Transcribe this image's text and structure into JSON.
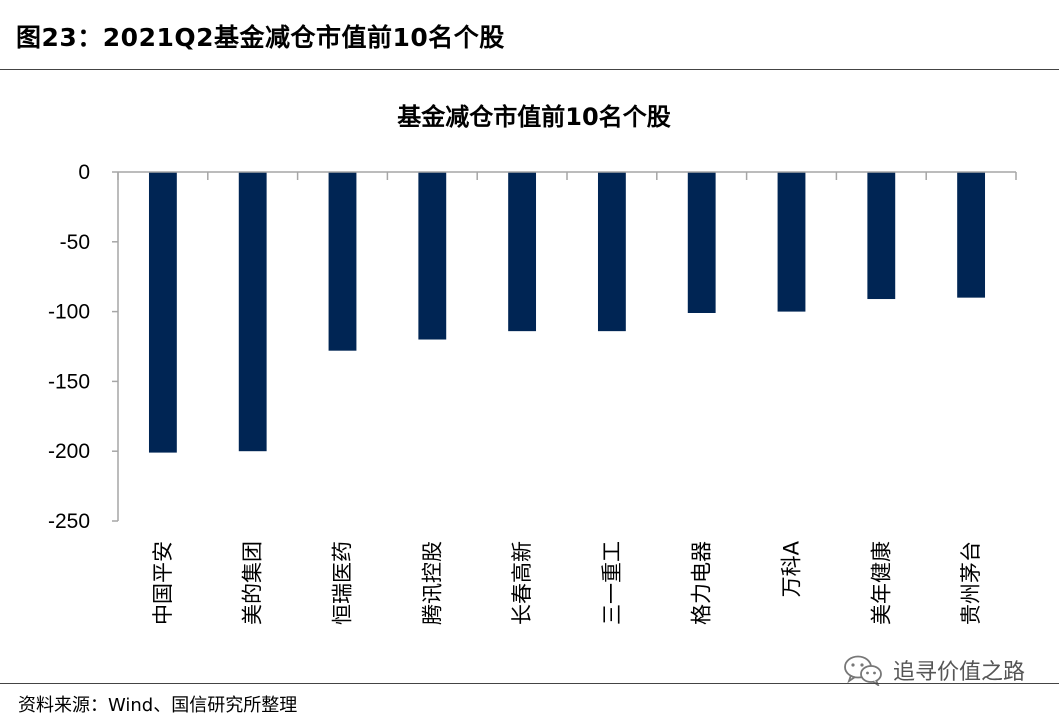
{
  "figure": {
    "title": "图23：2021Q2基金减仓市值前10名个股",
    "source": "资料来源：Wind、国信研究所整理",
    "watermark": "追寻价值之路",
    "watermark_icon": "wechat-icon"
  },
  "chart_data": {
    "type": "bar",
    "title": "基金减仓市值前10名个股",
    "xlabel": "",
    "ylabel": "",
    "categories": [
      "中国平安",
      "美的集团",
      "恒瑞医药",
      "腾讯控股",
      "长春高新",
      "三一重工",
      "格力电器",
      "万科A",
      "美年健康",
      "贵州茅台"
    ],
    "values": [
      -201,
      -200,
      -128,
      -120,
      -114,
      -114,
      -101,
      -100,
      -91,
      -90
    ],
    "ylim": [
      -250,
      0
    ],
    "yticks": [
      0,
      -50,
      -100,
      -150,
      -200,
      -250
    ],
    "grid": false,
    "legend": "none",
    "bar_color": "#002554"
  }
}
